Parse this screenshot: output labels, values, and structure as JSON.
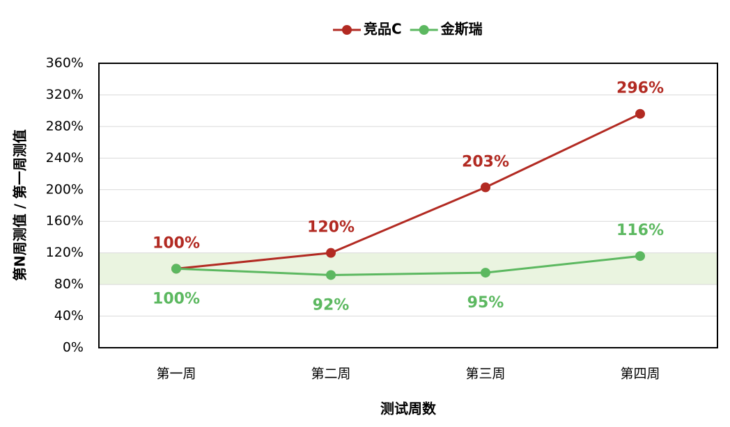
{
  "chart_data": {
    "type": "line",
    "x_label": "测试周数",
    "y_label": "第N周测值 / 第一周测值",
    "categories": [
      "第一周",
      "第二周",
      "第三周",
      "第四周"
    ],
    "series": [
      {
        "name": "竞品C",
        "color": "#b22a22",
        "values": [
          100,
          120,
          203,
          296
        ],
        "value_labels": [
          "100%",
          "120%",
          "203%",
          "296%"
        ],
        "label_position": [
          "above",
          "above",
          "above",
          "above"
        ]
      },
      {
        "name": "金斯瑞",
        "color": "#5cb860",
        "values": [
          100,
          92,
          95,
          116
        ],
        "value_labels": [
          "100%",
          "92%",
          "95%",
          "116%"
        ],
        "label_position": [
          "below",
          "below",
          "below",
          "above"
        ]
      }
    ],
    "ylim": [
      0,
      360
    ],
    "yticks": [
      {
        "value": 0,
        "label": "0%"
      },
      {
        "value": 40,
        "label": "40%"
      },
      {
        "value": 80,
        "label": "80%"
      },
      {
        "value": 120,
        "label": "120%"
      },
      {
        "value": 160,
        "label": "160%"
      },
      {
        "value": 200,
        "label": "200%"
      },
      {
        "value": 240,
        "label": "240%"
      },
      {
        "value": 280,
        "label": "280%"
      },
      {
        "value": 320,
        "label": "320%"
      },
      {
        "value": 360,
        "label": "360%"
      }
    ],
    "shaded_band": {
      "range": [
        80,
        120
      ],
      "color": "#eaf4e0"
    },
    "grid": true,
    "legend": "top"
  }
}
